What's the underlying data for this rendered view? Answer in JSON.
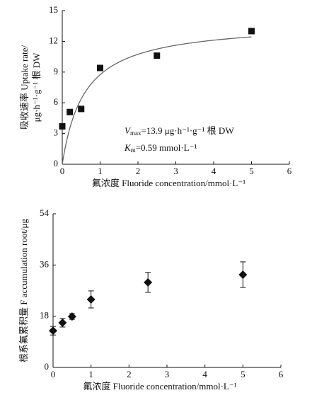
{
  "chart_data": [
    {
      "type": "scatter",
      "marker": "square",
      "color": "#111111",
      "x": [
        0,
        0.2,
        0.5,
        1,
        2.5,
        5
      ],
      "values": [
        3.7,
        5.1,
        5.4,
        9.4,
        10.6,
        13.0
      ],
      "vmax": 13.9,
      "km": 0.59,
      "xlim": [
        0,
        6
      ],
      "xticks": [
        0,
        1,
        2,
        3,
        4,
        5,
        6
      ],
      "ylim": [
        0,
        15
      ],
      "yticks": [
        0,
        3,
        6,
        9,
        12,
        15
      ],
      "xlabel": "氟浓度 Fluoride concentration/mmol·L⁻¹",
      "ylabel": [
        "吸收速率 Uptake rate/",
        "μg·h⁻¹·g⁻¹ 根 DW"
      ],
      "annotations": [
        [
          "V",
          "max",
          "=13.9 μg·h⁻¹·g⁻¹ 根 DW"
        ],
        [
          "K",
          "m",
          "=0.59 mmol·L⁻¹"
        ]
      ]
    },
    {
      "type": "scatter",
      "marker": "diamond",
      "color": "#111111",
      "x": [
        0,
        0.25,
        0.5,
        1,
        2.5,
        5
      ],
      "values": [
        12.9,
        15.7,
        17.9,
        23.9,
        29.9,
        32.6
      ],
      "errors": [
        1.5,
        1.5,
        1,
        3,
        3.5,
        4.5
      ],
      "xlim": [
        0,
        6
      ],
      "xticks": [
        0,
        1,
        2,
        3,
        4,
        5,
        6
      ],
      "ylim": [
        0,
        54
      ],
      "yticks": [
        0,
        18,
        36,
        54
      ],
      "xlabel": "氟浓度 Fluoride concentration/mmol·L⁻¹",
      "ylabel": [
        "根系氟累积量 F accumulation root/μg"
      ]
    }
  ]
}
